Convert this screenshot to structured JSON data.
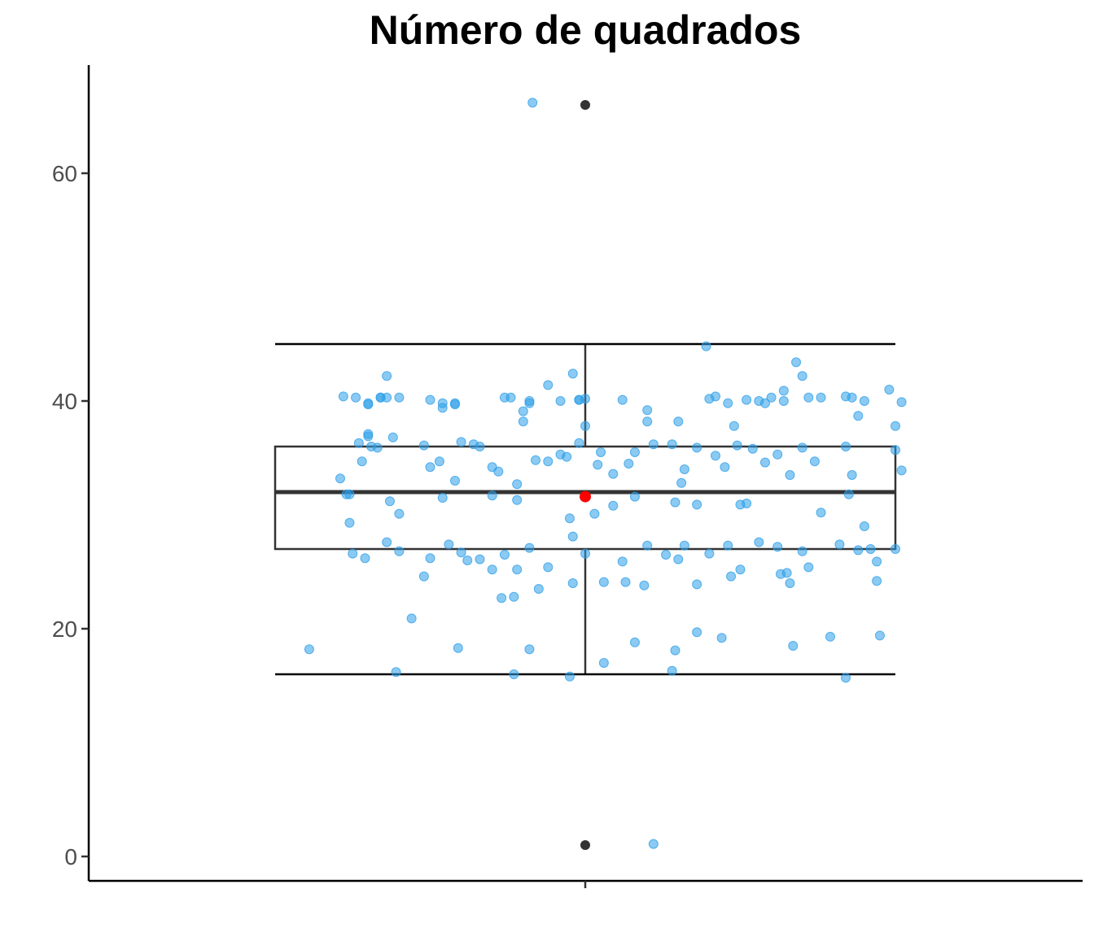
{
  "chart_data": {
    "type": "boxplot",
    "title": "Número de quadrados",
    "xlabel": "",
    "ylabel": "",
    "ylim": [
      -2,
      69
    ],
    "yticks": [
      0,
      20,
      40,
      60
    ],
    "grid": false,
    "box": {
      "whisker_low": 16,
      "q1": 27,
      "median": 32,
      "q3": 36,
      "whisker_high": 45,
      "mean": 31.6,
      "outliers": [
        66,
        1
      ]
    },
    "colors": {
      "points": "#2c9ee8",
      "mean": "#ff0000",
      "box": "#333333",
      "outliers": "#333333"
    },
    "jitter_points": [
      [
        -0.78,
        40.4
      ],
      [
        -0.74,
        40.3
      ],
      [
        -0.7,
        39.8
      ],
      [
        -0.7,
        39.7
      ],
      [
        -0.66,
        40.3
      ],
      [
        -0.66,
        40.3
      ],
      [
        -0.64,
        42.2
      ],
      [
        -0.64,
        40.3
      ],
      [
        -0.6,
        40.3
      ],
      [
        -0.5,
        40.1
      ],
      [
        -0.46,
        39.8
      ],
      [
        -0.46,
        39.4
      ],
      [
        -0.42,
        39.7
      ],
      [
        -0.42,
        39.8
      ],
      [
        -0.26,
        40.3
      ],
      [
        -0.24,
        40.3
      ],
      [
        -0.2,
        38.2
      ],
      [
        -0.2,
        39.1
      ],
      [
        -0.18,
        40.0
      ],
      [
        -0.18,
        39.8
      ],
      [
        -0.12,
        41.4
      ],
      [
        -0.08,
        40.0
      ],
      [
        -0.04,
        42.4
      ],
      [
        -0.02,
        40.1
      ],
      [
        -0.02,
        40.1
      ],
      [
        0.0,
        40.2
      ],
      [
        0.0,
        37.8
      ],
      [
        0.12,
        40.1
      ],
      [
        0.2,
        38.2
      ],
      [
        0.2,
        39.2
      ],
      [
        0.3,
        38.2
      ],
      [
        0.4,
        40.2
      ],
      [
        0.42,
        40.4
      ],
      [
        0.46,
        39.8
      ],
      [
        0.48,
        37.8
      ],
      [
        0.52,
        40.1
      ],
      [
        0.56,
        40.0
      ],
      [
        0.58,
        39.8
      ],
      [
        0.6,
        40.3
      ],
      [
        0.64,
        40.9
      ],
      [
        0.64,
        40.0
      ],
      [
        0.68,
        43.4
      ],
      [
        0.7,
        42.2
      ],
      [
        0.72,
        40.3
      ],
      [
        0.76,
        40.3
      ],
      [
        0.84,
        40.4
      ],
      [
        0.86,
        40.3
      ],
      [
        0.88,
        38.7
      ],
      [
        0.9,
        40.0
      ],
      [
        0.98,
        41.0
      ],
      [
        1.0,
        37.8
      ],
      [
        1.02,
        39.9
      ],
      [
        0.39,
        44.8
      ],
      [
        -0.79,
        33.2
      ],
      [
        -0.77,
        31.8
      ],
      [
        -0.76,
        31.8
      ],
      [
        -0.76,
        29.3
      ],
      [
        -0.73,
        36.3
      ],
      [
        -0.72,
        34.7
      ],
      [
        -0.7,
        37.1
      ],
      [
        -0.7,
        36.9
      ],
      [
        -0.69,
        36.0
      ],
      [
        -0.67,
        35.9
      ],
      [
        -0.63,
        31.2
      ],
      [
        -0.62,
        36.8
      ],
      [
        -0.52,
        36.1
      ],
      [
        -0.5,
        34.2
      ],
      [
        -0.47,
        34.7
      ],
      [
        -0.42,
        33.0
      ],
      [
        -0.4,
        36.4
      ],
      [
        -0.36,
        36.2
      ],
      [
        -0.34,
        36.0
      ],
      [
        -0.3,
        34.2
      ],
      [
        -0.28,
        33.8
      ],
      [
        -0.22,
        32.7
      ],
      [
        -0.16,
        34.8
      ],
      [
        -0.12,
        34.7
      ],
      [
        -0.08,
        35.3
      ],
      [
        -0.06,
        35.1
      ],
      [
        -0.02,
        36.3
      ],
      [
        0.04,
        34.4
      ],
      [
        0.05,
        35.5
      ],
      [
        0.09,
        33.6
      ],
      [
        0.14,
        34.5
      ],
      [
        0.16,
        35.5
      ],
      [
        0.22,
        36.2
      ],
      [
        0.28,
        36.2
      ],
      [
        0.32,
        34.0
      ],
      [
        0.36,
        35.9
      ],
      [
        0.42,
        35.2
      ],
      [
        0.45,
        34.2
      ],
      [
        0.49,
        36.1
      ],
      [
        0.54,
        35.8
      ],
      [
        0.58,
        34.6
      ],
      [
        0.62,
        35.3
      ],
      [
        0.66,
        33.5
      ],
      [
        0.7,
        35.9
      ],
      [
        0.74,
        34.7
      ],
      [
        0.84,
        36.0
      ],
      [
        0.86,
        33.5
      ],
      [
        1.0,
        35.7
      ],
      [
        1.02,
        33.9
      ],
      [
        0.31,
        32.8
      ],
      [
        -0.64,
        27.6
      ],
      [
        -0.6,
        30.1
      ],
      [
        -0.52,
        24.6
      ],
      [
        -0.44,
        27.4
      ],
      [
        -0.4,
        26.7
      ],
      [
        -0.34,
        26.1
      ],
      [
        -0.3,
        25.2
      ],
      [
        -0.26,
        26.5
      ],
      [
        -0.22,
        25.2
      ],
      [
        -0.18,
        27.1
      ],
      [
        -0.12,
        25.4
      ],
      [
        -0.04,
        28.1
      ],
      [
        0.0,
        26.6
      ],
      [
        0.06,
        24.1
      ],
      [
        0.12,
        25.9
      ],
      [
        0.2,
        27.3
      ],
      [
        0.26,
        26.5
      ],
      [
        0.32,
        27.3
      ],
      [
        0.4,
        26.6
      ],
      [
        0.46,
        27.3
      ],
      [
        0.5,
        25.2
      ],
      [
        0.56,
        27.6
      ],
      [
        0.62,
        27.2
      ],
      [
        0.66,
        24.0
      ],
      [
        0.7,
        26.8
      ],
      [
        0.76,
        30.2
      ],
      [
        0.82,
        27.4
      ],
      [
        0.88,
        26.9
      ],
      [
        0.92,
        27.0
      ],
      [
        1.0,
        27.0
      ],
      [
        -0.46,
        31.5
      ],
      [
        -0.3,
        31.7
      ],
      [
        -0.22,
        31.3
      ],
      [
        0.16,
        31.6
      ],
      [
        0.36,
        30.9
      ],
      [
        0.52,
        31.0
      ],
      [
        -0.75,
        26.6
      ],
      [
        -0.71,
        26.2
      ],
      [
        -0.6,
        26.8
      ],
      [
        -0.5,
        26.2
      ],
      [
        -0.38,
        26.0
      ],
      [
        -0.27,
        22.7
      ],
      [
        -0.04,
        24.0
      ],
      [
        0.13,
        24.1
      ],
      [
        0.3,
        26.1
      ],
      [
        0.47,
        24.6
      ],
      [
        0.65,
        24.9
      ],
      [
        0.72,
        25.4
      ],
      [
        0.94,
        25.9
      ],
      [
        -0.23,
        22.8
      ],
      [
        -0.15,
        23.5
      ],
      [
        0.19,
        23.8
      ],
      [
        0.36,
        23.9
      ],
      [
        0.63,
        24.8
      ],
      [
        0.94,
        24.2
      ],
      [
        -0.05,
        29.7
      ],
      [
        0.03,
        30.1
      ],
      [
        0.09,
        30.8
      ],
      [
        0.29,
        31.1
      ],
      [
        0.5,
        30.9
      ],
      [
        0.85,
        31.8
      ],
      [
        0.9,
        29.0
      ],
      [
        -0.89,
        18.2
      ],
      [
        -0.61,
        16.2
      ],
      [
        -0.56,
        20.9
      ],
      [
        -0.41,
        18.3
      ],
      [
        -0.23,
        16.0
      ],
      [
        -0.18,
        18.2
      ],
      [
        -0.05,
        15.8
      ],
      [
        0.06,
        17.0
      ],
      [
        0.16,
        18.8
      ],
      [
        0.29,
        18.1
      ],
      [
        0.36,
        19.7
      ],
      [
        0.44,
        19.2
      ],
      [
        0.67,
        18.5
      ],
      [
        0.79,
        19.3
      ],
      [
        0.95,
        19.4
      ],
      [
        0.28,
        16.3
      ],
      [
        0.84,
        15.7
      ],
      [
        -0.17,
        66.2
      ],
      [
        0.22,
        1.1
      ]
    ]
  }
}
